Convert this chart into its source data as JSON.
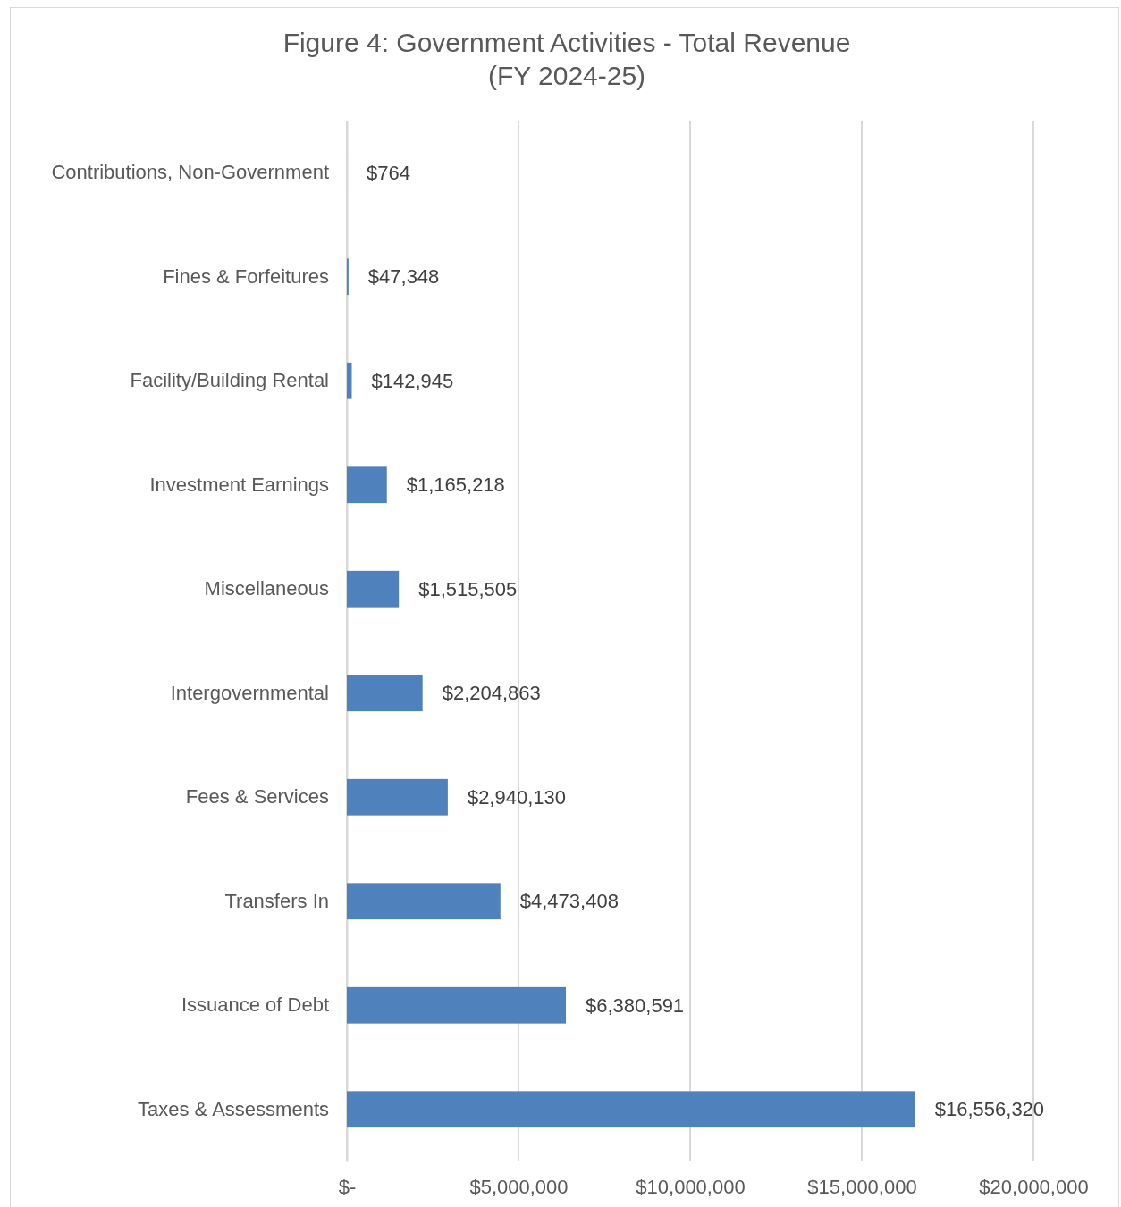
{
  "chart_data": {
    "type": "bar",
    "orientation": "horizontal",
    "title": "Figure 4: Government Activities - Total Revenue\n(FY 2024-25)",
    "categories": [
      "Contributions, Non-Government",
      "Fines & Forfeitures",
      "Facility/Building Rental",
      "Investment Earnings",
      "Miscellaneous",
      "Intergovernmental",
      "Fees & Services",
      "Transfers In",
      "Issuance of Debt",
      "Taxes & Assessments"
    ],
    "values": [
      764,
      47348,
      142945,
      1165218,
      1515505,
      2204863,
      2940130,
      4473408,
      6380591,
      16556320
    ],
    "value_labels": [
      "$764",
      "$47,348",
      "$142,945",
      "$1,165,218",
      "$1,515,505",
      "$2,204,863",
      "$2,940,130",
      "$4,473,408",
      "$6,380,591",
      "$16,556,320"
    ],
    "color": "#4f81bd",
    "xlim": [
      0,
      20000000
    ],
    "xticks": [
      {
        "value": 0,
        "label": "$-"
      },
      {
        "value": 5000000,
        "label": "$5,000,000"
      },
      {
        "value": 10000000,
        "label": "$10,000,000"
      },
      {
        "value": 15000000,
        "label": "$15,000,000"
      },
      {
        "value": 20000000,
        "label": "$20,000,000"
      }
    ],
    "grid": "x"
  }
}
